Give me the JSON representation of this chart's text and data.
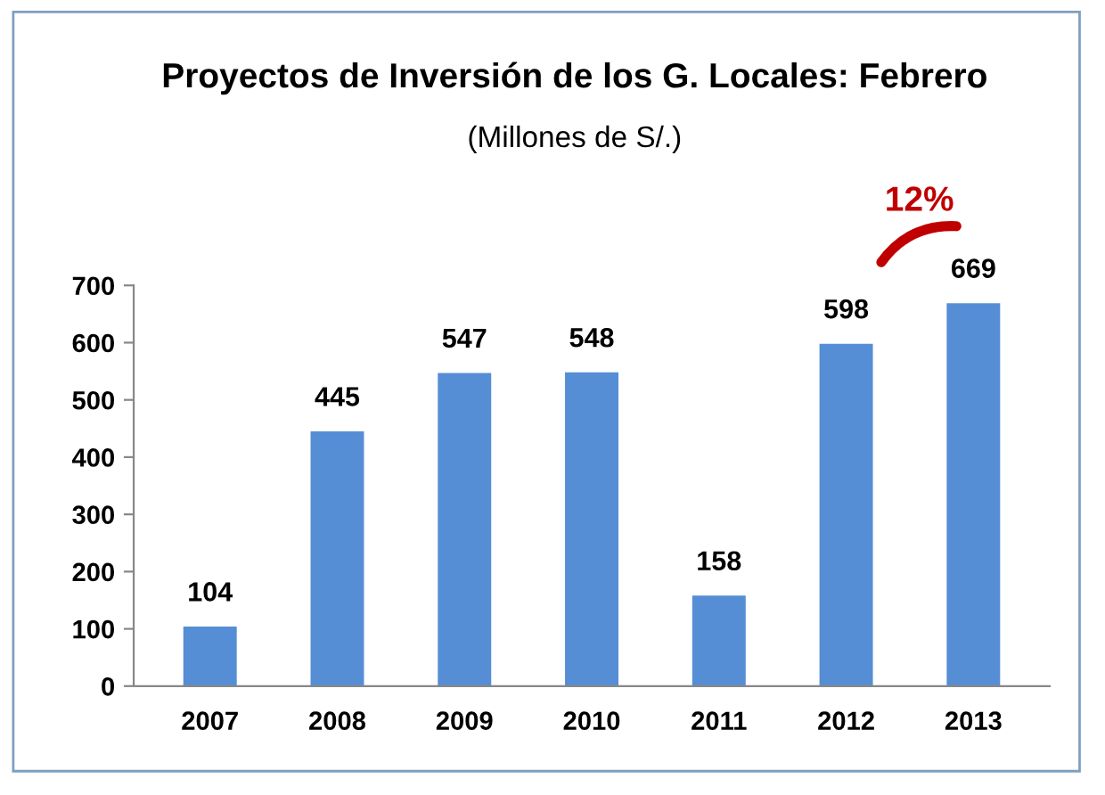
{
  "chart_data": {
    "type": "bar",
    "title": "Proyectos de Inversión de los G. Locales: Febrero",
    "subtitle": "(Millones de S/.)",
    "categories": [
      "2007",
      "2008",
      "2009",
      "2010",
      "2011",
      "2012",
      "2013"
    ],
    "values": [
      104,
      445,
      547,
      548,
      158,
      598,
      669
    ],
    "color": "#558ed5",
    "ylim": [
      0,
      700
    ],
    "yticks": [
      0,
      100,
      200,
      300,
      400,
      500,
      600,
      700
    ],
    "grid": false,
    "data_labels": true,
    "annotations": [
      "12%"
    ]
  }
}
